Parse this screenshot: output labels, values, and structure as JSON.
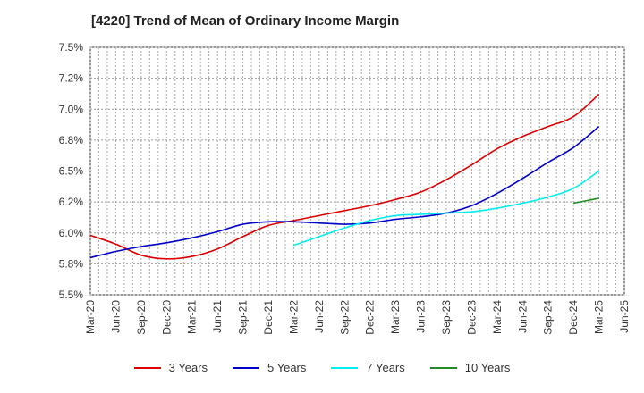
{
  "title": "[4220]  Trend of Mean of Ordinary Income Margin",
  "chart_data": {
    "type": "line",
    "title": "[4220]  Trend of Mean of Ordinary Income Margin",
    "ylim": [
      5.5,
      7.5
    ],
    "y_ticks": [
      5.5,
      5.75,
      6.0,
      6.25,
      6.5,
      6.75,
      7.0,
      7.25,
      7.5
    ],
    "y_tick_labels": [
      "5.5%",
      "5.8%",
      "6.0%",
      "6.2%",
      "6.5%",
      "6.8%",
      "7.0%",
      "7.2%",
      "7.5%"
    ],
    "x_tick_labels": [
      "Mar-20",
      "Jun-20",
      "Sep-20",
      "Dec-20",
      "Mar-21",
      "Jun-21",
      "Sep-21",
      "Dec-21",
      "Mar-22",
      "Jun-22",
      "Sep-22",
      "Dec-22",
      "Mar-23",
      "Jun-23",
      "Sep-23",
      "Dec-23",
      "Mar-24",
      "Jun-24",
      "Sep-24",
      "Dec-24",
      "Mar-25",
      "Jun-25"
    ],
    "grid": true,
    "legend_position": "bottom",
    "series": [
      {
        "name": "3 Years",
        "color": "#dd0000",
        "x": [
          "Mar-20",
          "Jun-20",
          "Sep-20",
          "Dec-20",
          "Mar-21",
          "Jun-21",
          "Sep-21",
          "Dec-21",
          "Mar-22",
          "Jun-22",
          "Sep-22",
          "Dec-22",
          "Mar-23",
          "Jun-23",
          "Sep-23",
          "Dec-23",
          "Mar-24",
          "Jun-24",
          "Sep-24",
          "Dec-24",
          "Mar-25"
        ],
        "values": [
          5.98,
          5.91,
          5.82,
          5.79,
          5.81,
          5.87,
          5.97,
          6.06,
          6.1,
          6.14,
          6.18,
          6.22,
          6.27,
          6.33,
          6.43,
          6.55,
          6.68,
          6.78,
          6.86,
          6.94,
          7.12
        ]
      },
      {
        "name": "5 Years",
        "color": "#0000cc",
        "x": [
          "Mar-20",
          "Jun-20",
          "Sep-20",
          "Dec-20",
          "Mar-21",
          "Jun-21",
          "Sep-21",
          "Dec-21",
          "Mar-22",
          "Jun-22",
          "Sep-22",
          "Dec-22",
          "Mar-23",
          "Jun-23",
          "Sep-23",
          "Dec-23",
          "Mar-24",
          "Jun-24",
          "Sep-24",
          "Dec-24",
          "Mar-25"
        ],
        "values": [
          5.8,
          5.85,
          5.89,
          5.92,
          5.96,
          6.01,
          6.07,
          6.09,
          6.09,
          6.08,
          6.07,
          6.08,
          6.11,
          6.13,
          6.16,
          6.22,
          6.32,
          6.44,
          6.57,
          6.69,
          6.86
        ]
      },
      {
        "name": "7 Years",
        "color": "#00eeee",
        "x": [
          "Mar-22",
          "Jun-22",
          "Sep-22",
          "Dec-22",
          "Mar-23",
          "Jun-23",
          "Sep-23",
          "Dec-23",
          "Mar-24",
          "Jun-24",
          "Sep-24",
          "Dec-24",
          "Mar-25"
        ],
        "values": [
          5.9,
          5.97,
          6.04,
          6.1,
          6.14,
          6.15,
          6.16,
          6.17,
          6.2,
          6.24,
          6.29,
          6.36,
          6.5
        ]
      },
      {
        "name": "10 Years",
        "color": "#228b22",
        "x": [
          "Dec-24",
          "Mar-25"
        ],
        "values": [
          6.24,
          6.28
        ]
      }
    ]
  }
}
